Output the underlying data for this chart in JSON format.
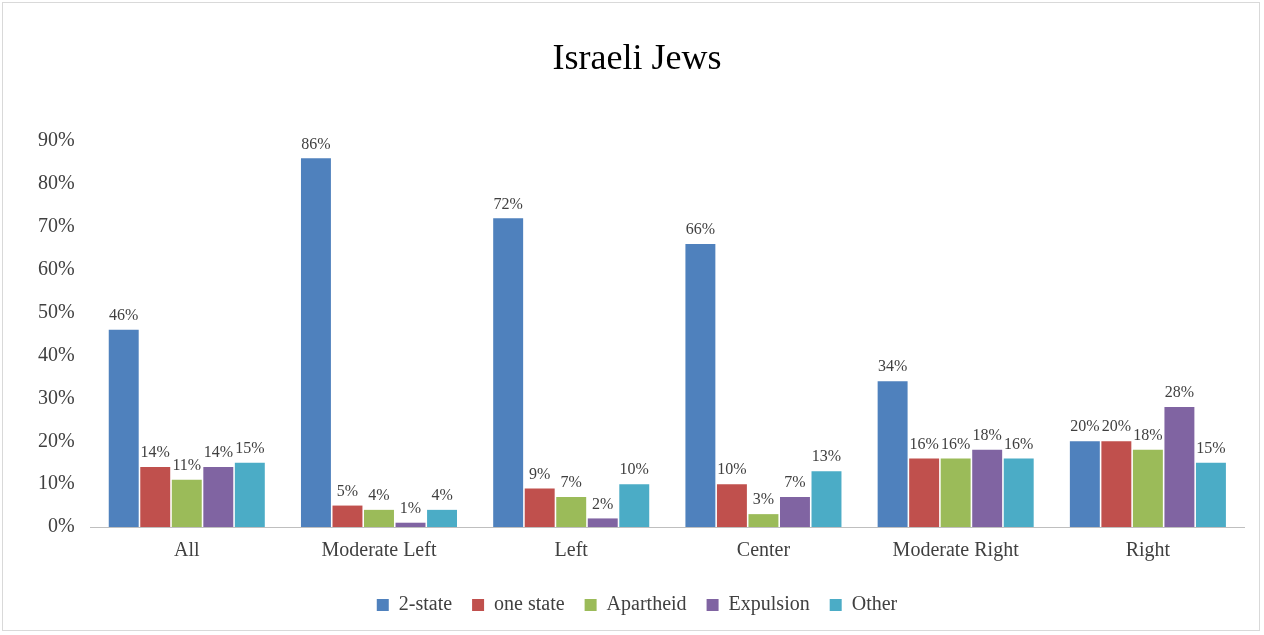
{
  "chart_data": {
    "type": "bar",
    "title": "Israeli Jews",
    "categories": [
      "All",
      "Moderate Left",
      "Left",
      "Center",
      "Moderate Right",
      "Right"
    ],
    "series": [
      {
        "name": "2-state",
        "color": "#4f81bd",
        "values": [
          46,
          86,
          72,
          66,
          34,
          20
        ],
        "value_labels": [
          "46%",
          "86%",
          "72%",
          "66%",
          "34%",
          "20%"
        ]
      },
      {
        "name": "one state",
        "color": "#c0504d",
        "values": [
          14,
          5,
          9,
          10,
          16,
          20
        ],
        "value_labels": [
          "14%",
          "5%",
          "9%",
          "10%",
          "16%",
          "20%"
        ]
      },
      {
        "name": "Apartheid",
        "color": "#9bbb59",
        "values": [
          11,
          4,
          7,
          3,
          16,
          18
        ],
        "value_labels": [
          "11%",
          "4%",
          "7%",
          "3%",
          "16%",
          "18%"
        ]
      },
      {
        "name": "Expulsion",
        "color": "#8064a2",
        "values": [
          14,
          1,
          2,
          7,
          18,
          28
        ],
        "value_labels": [
          "14%",
          "1%",
          "2%",
          "7%",
          "18%",
          "28%"
        ]
      },
      {
        "name": "Other",
        "color": "#4bacc6",
        "values": [
          15,
          4,
          10,
          13,
          16,
          15
        ],
        "value_labels": [
          "15%",
          "4%",
          "10%",
          "13%",
          "16%",
          "15%"
        ]
      }
    ],
    "ylim": [
      0,
      90
    ],
    "yticks": [
      {
        "value": 0,
        "label": "0%"
      },
      {
        "value": 10,
        "label": "10%"
      },
      {
        "value": 20,
        "label": "20%"
      },
      {
        "value": 30,
        "label": "30%"
      },
      {
        "value": 40,
        "label": "40%"
      },
      {
        "value": 50,
        "label": "50%"
      },
      {
        "value": 60,
        "label": "60%"
      },
      {
        "value": 70,
        "label": "70%"
      },
      {
        "value": 80,
        "label": "80%"
      },
      {
        "value": 90,
        "label": "90%"
      }
    ],
    "grid": false,
    "legend": "bottom"
  }
}
